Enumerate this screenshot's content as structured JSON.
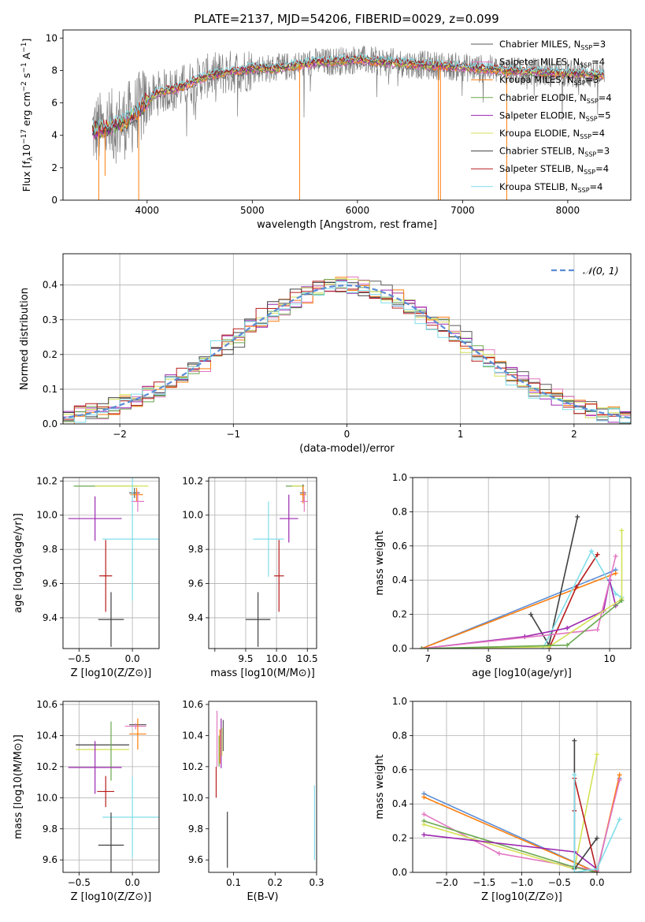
{
  "figure": {
    "title": "PLATE=2137, MJD=54206, FIBERID=0029, z=0.099"
  },
  "chart_data": [
    {
      "id": "spectrum",
      "type": "line",
      "xlabel": "wavelength [Angstrom, rest frame]",
      "ylabel": "Flux [fλ10^-17 erg cm^-2 s^-1 A^-1]",
      "xlim": [
        3200,
        8600
      ],
      "ylim": [
        0,
        10.5
      ],
      "xticks": [
        4000,
        5000,
        6000,
        7000,
        8000
      ],
      "yticks": [
        0,
        2,
        4,
        6,
        8,
        10
      ],
      "grid": false,
      "legend_position": "top-right",
      "data_continuum": [
        [
          3480,
          4.3
        ],
        [
          3600,
          4.4
        ],
        [
          3700,
          4.6
        ],
        [
          3800,
          4.9
        ],
        [
          3900,
          5.4
        ],
        [
          4000,
          6.1
        ],
        [
          4100,
          6.6
        ],
        [
          4200,
          6.8
        ],
        [
          4300,
          6.9
        ],
        [
          4400,
          7.2
        ],
        [
          4500,
          7.5
        ],
        [
          4600,
          7.7
        ],
        [
          4700,
          7.8
        ],
        [
          4800,
          7.9
        ],
        [
          4900,
          8.0
        ],
        [
          5000,
          8.1
        ],
        [
          5100,
          8.15
        ],
        [
          5200,
          8.1
        ],
        [
          5300,
          8.2
        ],
        [
          5400,
          8.3
        ],
        [
          5500,
          8.4
        ],
        [
          5600,
          8.5
        ],
        [
          5700,
          8.5
        ],
        [
          5800,
          8.6
        ],
        [
          5900,
          8.6
        ],
        [
          6000,
          8.7
        ],
        [
          6100,
          8.6
        ],
        [
          6200,
          8.55
        ],
        [
          6300,
          8.5
        ],
        [
          6400,
          8.45
        ],
        [
          6500,
          8.4
        ],
        [
          6600,
          8.35
        ],
        [
          6700,
          8.3
        ],
        [
          6800,
          8.3
        ],
        [
          6900,
          8.25
        ],
        [
          7000,
          8.2
        ],
        [
          7100,
          8.15
        ],
        [
          7200,
          8.1
        ],
        [
          7300,
          8.05
        ],
        [
          7400,
          8.0
        ],
        [
          7500,
          7.95
        ],
        [
          7600,
          7.9
        ],
        [
          7700,
          7.9
        ],
        [
          7800,
          7.85
        ],
        [
          7900,
          7.85
        ],
        [
          8000,
          7.8
        ],
        [
          8100,
          7.8
        ],
        [
          8200,
          7.75
        ],
        [
          8350,
          7.7
        ]
      ],
      "spikes": [
        [
          3540,
          0
        ],
        [
          3600,
          1.5
        ],
        [
          3920,
          0
        ],
        [
          5450,
          0
        ],
        [
          6770,
          0
        ],
        [
          6790,
          0
        ],
        [
          7420,
          0
        ]
      ],
      "series": [
        {
          "name": "Chabrier MILES, N_SSP=3",
          "label_base": "Chabrier MILES, N",
          "label_sub": "SSP",
          "label_tail": "=3",
          "color": "#5a5a5a"
        },
        {
          "name": "Salpeter MILES, N_SSP=4",
          "label_base": "Salpeter MILES, N",
          "label_sub": "SSP",
          "label_tail": "=4",
          "color": "#e377c2"
        },
        {
          "name": "Kroupa MILES, N_SSP=3",
          "label_base": "Kroupa MILES, N",
          "label_sub": "SSP",
          "label_tail": "=3",
          "color": "#ff7f0e"
        },
        {
          "name": "Chabrier ELODIE, N_SSP=4",
          "label_base": "Chabrier ELODIE, N",
          "label_sub": "SSP",
          "label_tail": "=4",
          "color": "#6aa84f"
        },
        {
          "name": "Salpeter ELODIE, N_SSP=5",
          "label_base": "Salpeter ELODIE, N",
          "label_sub": "SSP",
          "label_tail": "=5",
          "color": "#9c27b0"
        },
        {
          "name": "Kroupa ELODIE, N_SSP=4",
          "label_base": "Kroupa ELODIE, N",
          "label_sub": "SSP",
          "label_tail": "=4",
          "color": "#d4e157"
        },
        {
          "name": "Chabrier STELIB, N_SSP=3",
          "label_base": "Chabrier STELIB, N",
          "label_sub": "SSP",
          "label_tail": "=3",
          "color": "#404040"
        },
        {
          "name": "Salpeter STELIB, N_SSP=4",
          "label_base": "Salpeter STELIB, N",
          "label_sub": "SSP",
          "label_tail": "=4",
          "color": "#b71c1c"
        },
        {
          "name": "Kroupa STELIB, N_SSP=4",
          "label_base": "Kroupa STELIB, N",
          "label_sub": "SSP",
          "label_tail": "=4",
          "color": "#80deea"
        }
      ]
    },
    {
      "id": "residuals",
      "type": "line",
      "xlabel": "(data-model)/error",
      "ylabel": "Normed distribution",
      "xlim": [
        -2.5,
        2.5
      ],
      "ylim": [
        0,
        0.49
      ],
      "xticks": [
        -2,
        -1,
        0,
        1,
        2
      ],
      "yticks": [
        0.0,
        0.1,
        0.2,
        0.3,
        0.4
      ],
      "grid": true,
      "legend_position": "top-right",
      "gaussian": {
        "name": "𝒩(0, 1)",
        "color": "#5b8dd6",
        "mean": 0,
        "sigma": 1
      },
      "histogram_colors": [
        "#5a5a5a",
        "#e377c2",
        "#ff7f0e",
        "#6aa84f",
        "#9c27b0",
        "#d4e157",
        "#404040",
        "#b71c1c",
        "#80deea"
      ],
      "bin_width": 0.1
    },
    {
      "id": "age_vs_Z",
      "type": "scatter",
      "xlabel": "Z [log10(Z/Z⊙)]",
      "ylabel": "age  [log10(age/yr)]",
      "xlim": [
        -0.65,
        0.25
      ],
      "ylim": [
        9.22,
        10.22
      ],
      "xticks": [
        -0.5,
        0.0
      ],
      "yticks": [
        9.4,
        9.6,
        9.8,
        10.0,
        10.2
      ],
      "grid": true,
      "points": [
        {
          "x": -0.25,
          "y": 10.17,
          "xerr": 0.3,
          "yerr": 0.0,
          "color": "#6aa84f"
        },
        {
          "x": -0.1,
          "y": 10.17,
          "xerr": 0.25,
          "yerr": 0.0,
          "color": "#d4e157"
        },
        {
          "x": 0.02,
          "y": 10.13,
          "xerr": 0.05,
          "yerr": 0.03,
          "color": "#5a5a5a"
        },
        {
          "x": 0.04,
          "y": 10.12,
          "xerr": 0.06,
          "yerr": 0.04,
          "color": "#ff7f0e"
        },
        {
          "x": 0.05,
          "y": 10.08,
          "xerr": 0.06,
          "yerr": 0.06,
          "color": "#e377c2"
        },
        {
          "x": -0.35,
          "y": 9.98,
          "xerr": 0.25,
          "yerr": 0.13,
          "color": "#9c27b0"
        },
        {
          "x": 0.0,
          "y": 9.86,
          "xerr": 0.28,
          "yerr": 0.36,
          "color": "#80deea"
        },
        {
          "x": -0.25,
          "y": 9.645,
          "xerr": 0.06,
          "yerr": 0.21,
          "color": "#b71c1c"
        },
        {
          "x": -0.2,
          "y": 9.39,
          "xerr": 0.12,
          "yerr": 0.16,
          "color": "#404040"
        }
      ]
    },
    {
      "id": "age_vs_mass",
      "type": "scatter",
      "xlabel": "mass [log10(M/M⊙)]",
      "ylabel": "",
      "xlim": [
        8.9,
        10.65
      ],
      "ylim": [
        9.22,
        10.22
      ],
      "xticks": [
        9.0,
        9.5,
        10.0,
        10.5
      ],
      "xticklabels": [
        "",
        "9.5",
        "10.0",
        "10.5"
      ],
      "yticks": [
        9.4,
        9.6,
        9.8,
        10.0,
        10.2
      ],
      "grid": true,
      "points": [
        {
          "x": 10.3,
          "y": 10.17,
          "xerr": 0.15,
          "yerr": 0.0,
          "color": "#6aa84f"
        },
        {
          "x": 10.35,
          "y": 10.17,
          "xerr": 0.1,
          "yerr": 0.0,
          "color": "#d4e157"
        },
        {
          "x": 10.43,
          "y": 10.13,
          "xerr": 0.05,
          "yerr": 0.05,
          "color": "#5a5a5a"
        },
        {
          "x": 10.43,
          "y": 10.12,
          "xerr": 0.05,
          "yerr": 0.05,
          "color": "#ff7f0e"
        },
        {
          "x": 10.45,
          "y": 10.08,
          "xerr": 0.06,
          "yerr": 0.06,
          "color": "#e377c2"
        },
        {
          "x": 10.2,
          "y": 9.98,
          "xerr": 0.15,
          "yerr": 0.14,
          "color": "#9c27b0"
        },
        {
          "x": 9.87,
          "y": 9.86,
          "xerr": 0.25,
          "yerr": 0.22,
          "color": "#80deea"
        },
        {
          "x": 10.04,
          "y": 9.645,
          "xerr": 0.08,
          "yerr": 0.21,
          "color": "#b71c1c"
        },
        {
          "x": 9.7,
          "y": 9.39,
          "xerr": 0.2,
          "yerr": 0.16,
          "color": "#404040"
        }
      ]
    },
    {
      "id": "weight_vs_age",
      "type": "line",
      "xlabel": "age  [log10(age/yr)]",
      "ylabel": "mass weight",
      "xlim": [
        6.75,
        10.35
      ],
      "ylim": [
        0.0,
        1.0
      ],
      "xticks": [
        7,
        8,
        9,
        10
      ],
      "yticks": [
        0.0,
        0.2,
        0.4,
        0.6,
        0.8,
        1.0
      ],
      "grid": true,
      "series": [
        {
          "color": "#5b8dd6",
          "points": [
            [
              6.9,
              0.0
            ],
            [
              10.1,
              0.46
            ]
          ]
        },
        {
          "color": "#ff7f0e",
          "points": [
            [
              6.9,
              0.0
            ],
            [
              10.1,
              0.44
            ]
          ]
        },
        {
          "color": "#404040",
          "points": [
            [
              8.7,
              0.2
            ],
            [
              9.0,
              0.02
            ],
            [
              9.47,
              0.77
            ]
          ]
        },
        {
          "color": "#b71c1c",
          "points": [
            [
              9.0,
              0.0
            ],
            [
              9.45,
              0.36
            ],
            [
              9.8,
              0.55
            ]
          ]
        },
        {
          "color": "#80deea",
          "points": [
            [
              8.9,
              0.0
            ],
            [
              9.7,
              0.57
            ],
            [
              10.1,
              0.32
            ],
            [
              10.2,
              0.3
            ]
          ]
        },
        {
          "color": "#9c27b0",
          "points": [
            [
              6.9,
              0.0
            ],
            [
              8.6,
              0.07
            ],
            [
              9.3,
              0.12
            ],
            [
              9.9,
              0.22
            ],
            [
              10.0,
              0.4
            ],
            [
              10.1,
              0.25
            ]
          ]
        },
        {
          "color": "#e377c2",
          "points": [
            [
              6.9,
              0.0
            ],
            [
              9.8,
              0.11
            ],
            [
              10.1,
              0.54
            ]
          ]
        },
        {
          "color": "#d4e157",
          "points": [
            [
              6.9,
              0.0
            ],
            [
              9.0,
              0.01
            ],
            [
              10.2,
              0.29
            ],
            [
              10.2,
              0.69
            ]
          ]
        },
        {
          "color": "#6aa84f",
          "points": [
            [
              6.9,
              0.0
            ],
            [
              9.3,
              0.02
            ],
            [
              10.2,
              0.28
            ]
          ]
        }
      ]
    },
    {
      "id": "mass_vs_Z",
      "type": "scatter",
      "xlabel": "Z [log10(Z/Z⊙)]",
      "ylabel": "mass [log10(M/M⊙)]",
      "xlim": [
        -0.65,
        0.25
      ],
      "ylim": [
        9.52,
        10.62
      ],
      "xticks": [
        -0.5,
        0.0
      ],
      "yticks": [
        9.6,
        9.8,
        10.0,
        10.2,
        10.4,
        10.6
      ],
      "grid": true,
      "points": [
        {
          "x": 0.05,
          "y": 10.47,
          "xerr": 0.08,
          "yerr": 0.01,
          "color": "#5a5a5a"
        },
        {
          "x": 0.03,
          "y": 10.46,
          "xerr": 0.1,
          "yerr": 0.02,
          "color": "#e377c2"
        },
        {
          "x": 0.05,
          "y": 10.41,
          "xerr": 0.08,
          "yerr": 0.1,
          "color": "#ff7f0e"
        },
        {
          "x": -0.28,
          "y": 10.34,
          "xerr": 0.25,
          "yerr": 0.0,
          "color": "#404040"
        },
        {
          "x": -0.28,
          "y": 10.31,
          "xerr": 0.25,
          "yerr": 0.0,
          "color": "#d4e157"
        },
        {
          "x": -0.2,
          "y": 10.3,
          "xerr": 0.0,
          "yerr": 0.19,
          "color": "#6aa84f"
        },
        {
          "x": -0.35,
          "y": 10.195,
          "xerr": 0.25,
          "yerr": 0.17,
          "color": "#9c27b0"
        },
        {
          "x": -0.25,
          "y": 10.04,
          "xerr": 0.08,
          "yerr": 0.1,
          "color": "#b71c1c"
        },
        {
          "x": 0.0,
          "y": 9.875,
          "xerr": 0.28,
          "yerr": 0.26,
          "color": "#80deea"
        },
        {
          "x": -0.2,
          "y": 9.695,
          "xerr": 0.12,
          "yerr": 0.21,
          "color": "#404040"
        }
      ]
    },
    {
      "id": "mass_vs_EBV",
      "type": "scatter",
      "xlabel": "E(B-V)",
      "ylabel": "",
      "xlim": [
        0.04,
        0.3
      ],
      "ylim": [
        9.52,
        10.62
      ],
      "xticks": [
        0.1,
        0.2,
        0.3
      ],
      "yticks": [
        9.6,
        9.8,
        10.0,
        10.2,
        10.4,
        10.6
      ],
      "grid": false,
      "points": [
        {
          "x": 0.058,
          "y": 10.1,
          "xerr": 0,
          "yerr": 0.1,
          "color": "#b71c1c"
        },
        {
          "x": 0.06,
          "y": 10.38,
          "xerr": 0,
          "yerr": 0.18,
          "color": "#e377c2"
        },
        {
          "x": 0.065,
          "y": 10.3,
          "xerr": 0,
          "yerr": 0.1,
          "color": "#6aa84f"
        },
        {
          "x": 0.067,
          "y": 10.33,
          "xerr": 0,
          "yerr": 0.11,
          "color": "#ff7f0e"
        },
        {
          "x": 0.07,
          "y": 10.35,
          "xerr": 0,
          "yerr": 0.16,
          "color": "#9c27b0"
        },
        {
          "x": 0.072,
          "y": 10.36,
          "xerr": 0,
          "yerr": 0.09,
          "color": "#d4e157"
        },
        {
          "x": 0.075,
          "y": 10.4,
          "xerr": 0,
          "yerr": 0.1,
          "color": "#5a5a5a"
        },
        {
          "x": 0.085,
          "y": 9.73,
          "xerr": 0,
          "yerr": 0.18,
          "color": "#404040"
        },
        {
          "x": 0.295,
          "y": 9.84,
          "xerr": 0,
          "yerr": 0.24,
          "color": "#80deea"
        }
      ]
    },
    {
      "id": "weight_vs_Z",
      "type": "line",
      "xlabel": "Z [log10(Z/Z⊙)]",
      "ylabel": "mass weight",
      "xlim": [
        -2.45,
        0.45
      ],
      "ylim": [
        0.0,
        1.0
      ],
      "xticks": [
        -2.0,
        -1.5,
        -1.0,
        -0.5,
        0.0
      ],
      "yticks": [
        0.0,
        0.2,
        0.4,
        0.6,
        0.8,
        1.0
      ],
      "grid": true,
      "series": [
        {
          "color": "#5b8dd6",
          "points": [
            [
              -2.3,
              0.46
            ],
            [
              0.0,
              0.0
            ],
            [
              0.3,
              0.55
            ]
          ]
        },
        {
          "color": "#ff7f0e",
          "points": [
            [
              -2.3,
              0.44
            ],
            [
              0.0,
              0.0
            ],
            [
              0.3,
              0.57
            ]
          ]
        },
        {
          "color": "#e377c2",
          "points": [
            [
              -2.3,
              0.34
            ],
            [
              -1.3,
              0.11
            ],
            [
              0.0,
              0.01
            ],
            [
              0.3,
              0.54
            ]
          ]
        },
        {
          "color": "#6aa84f",
          "points": [
            [
              -2.3,
              0.3
            ],
            [
              -0.3,
              0.03
            ],
            [
              0.0,
              0.0
            ]
          ]
        },
        {
          "color": "#d4e157",
          "points": [
            [
              -2.3,
              0.28
            ],
            [
              -0.3,
              0.02
            ],
            [
              0.0,
              0.69
            ]
          ]
        },
        {
          "color": "#9c27b0",
          "points": [
            [
              -2.3,
              0.22
            ],
            [
              -0.3,
              0.12
            ],
            [
              0.0,
              0.02
            ]
          ]
        },
        {
          "color": "#404040",
          "points": [
            [
              -0.3,
              0.77
            ],
            [
              -0.3,
              0.02
            ],
            [
              0.0,
              0.2
            ]
          ]
        },
        {
          "color": "#b71c1c",
          "points": [
            [
              -0.3,
              0.36
            ],
            [
              -0.3,
              0.55
            ],
            [
              0.0,
              0.0
            ]
          ]
        },
        {
          "color": "#80deea",
          "points": [
            [
              -0.3,
              0.57
            ],
            [
              -0.3,
              0.0
            ],
            [
              0.0,
              0.02
            ],
            [
              0.3,
              0.31
            ]
          ]
        }
      ]
    }
  ]
}
